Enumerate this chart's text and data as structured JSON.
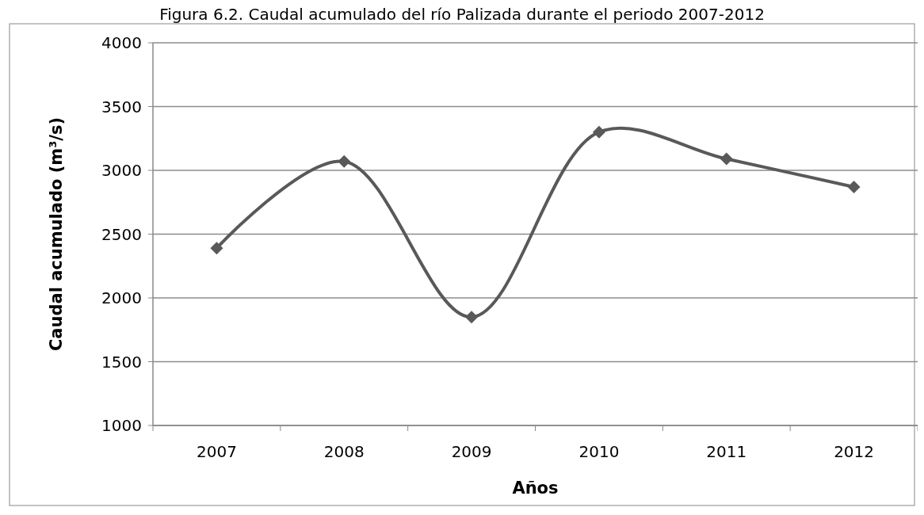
{
  "chart_data": {
    "type": "line",
    "title": "Figura 6.2. Caudal acumulado del río Palizada durante el periodo 2007-2012",
    "xlabel": "Años",
    "ylabel": "Caudal acumulado (m³/s)",
    "categories": [
      "2007",
      "2008",
      "2009",
      "2010",
      "2011",
      "2012"
    ],
    "series": [
      {
        "color": "#595959",
        "values": [
          2390,
          3070,
          1850,
          3300,
          3090,
          2870
        ]
      }
    ],
    "ylim": [
      1000,
      4000
    ],
    "yticks": [
      1000,
      1500,
      2000,
      2500,
      3000,
      3500,
      4000
    ],
    "grid": "y",
    "marker": "diamond",
    "line_style": "solid"
  }
}
